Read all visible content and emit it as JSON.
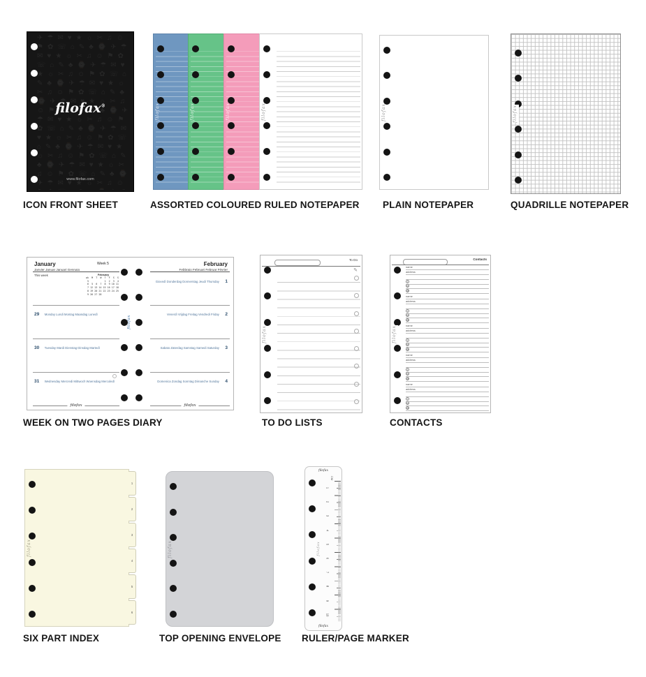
{
  "page": {
    "background": "#ffffff"
  },
  "brand": {
    "logo": "filofax",
    "reg": "®",
    "website": "www.filofax.com"
  },
  "products": {
    "icon_front_sheet": {
      "label": "ICON FRONT SHEET",
      "logo": "filofax",
      "website": "www.filofax.com",
      "pattern_glyphs": "✈☂✉♥★☼✂♫☺⚑✿☏⌂✎♣⌚"
    },
    "assorted_notepaper": {
      "label": "ASSORTED COLOURED RULED NOTEPAPER",
      "colors": {
        "blue": "#6f97c0",
        "green": "#66c388",
        "pink": "#f49cba",
        "white": "#ffffff"
      }
    },
    "plain_notepaper": {
      "label": "PLAIN NOTEPAPER"
    },
    "quadrille_notepaper": {
      "label": "QUADRILLE NOTEPAPER"
    },
    "diary": {
      "label": "WEEK ON TWO PAGES DIARY",
      "spine_logo": "filofax",
      "footer_logo": "filofax",
      "left": {
        "month": "January",
        "month_sub": "Janvier Januar Januari Gennaio",
        "week": "Week 5",
        "this_week": "This week",
        "minical": {
          "month": "February",
          "header": "wk  M  T  W  T  F  S  S",
          "rows": [
            " 5           1  2  3  4",
            " 6  5  6  7  8  9 10 11",
            " 7 12 13 14 15 16 17 18",
            " 8 19 20 21 22 23 24 25",
            " 9 26 27 28"
          ]
        },
        "days": [
          {
            "num": "29",
            "names": "Monday Lundi Montag Maandag Lunedì"
          },
          {
            "num": "30",
            "names": "Tuesday Mardi Dienstag Dinsdag Martedì"
          },
          {
            "num": "31",
            "names": "Wednesday Mercredi Mittwoch Woensdag Mercoledì"
          }
        ]
      },
      "right": {
        "month": "February",
        "month_sub": "Febbraio Februari Februar Février",
        "days": [
          {
            "names": "Giovedì Donderdag Donnerstag Jeudi Thursday",
            "num": "1"
          },
          {
            "names": "Venerdì Vrijdag Freitag Vendredi Friday",
            "num": "2"
          },
          {
            "names": "Sabato Zaterdag Samstag Samedi Saturday",
            "num": "3"
          },
          {
            "names": "Domenica Zondag Sonntag Dimanche Sunday",
            "num": "4"
          }
        ]
      }
    },
    "todo": {
      "label": "TO DO LISTS",
      "header": "To Do",
      "pencil_icon": "✎"
    },
    "contacts": {
      "label": "CONTACTS",
      "header": "Contacts",
      "name_label": "name",
      "address_label": "address",
      "icons": [
        "t",
        "m",
        "@"
      ]
    },
    "six_part_index": {
      "label": "SIX PART INDEX",
      "tabs": [
        "1",
        "2",
        "3",
        "4",
        "5",
        "6"
      ]
    },
    "envelope": {
      "label": "TOP OPENING ENVELOPE"
    },
    "ruler": {
      "label": "RULER/PAGE MARKER",
      "brand_top": "filofax",
      "brand_bottom": "filofax",
      "unit": "CM",
      "numbers": [
        "1",
        "2",
        "3",
        "4",
        "5",
        "6",
        "7",
        "8",
        "9",
        "10"
      ]
    }
  }
}
